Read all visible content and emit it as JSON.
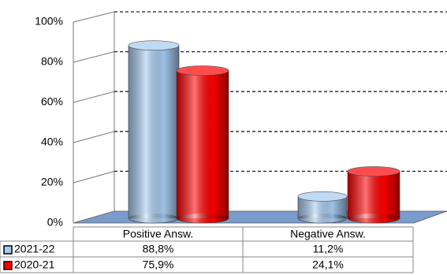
{
  "chart_data": {
    "type": "bar",
    "categories": [
      "Positive Answ.",
      "Negative Answ."
    ],
    "series": [
      {
        "name": "2021-22",
        "color": "#a6caf0",
        "values": [
          88.8,
          11.2
        ],
        "value_labels": [
          "88,8%",
          "11,2%"
        ]
      },
      {
        "name": "2020-21",
        "color": "#ff0000",
        "values": [
          75.9,
          24.1
        ],
        "value_labels": [
          "75,9%",
          "24,1%"
        ]
      }
    ],
    "ylim": [
      0,
      100
    ],
    "yticks": [
      {
        "value": 0,
        "label": "0%"
      },
      {
        "value": 20,
        "label": "20%"
      },
      {
        "value": 40,
        "label": "40%"
      },
      {
        "value": 60,
        "label": "60%"
      },
      {
        "value": 80,
        "label": "80%"
      },
      {
        "value": 100,
        "label": "100%"
      }
    ],
    "grid": true
  }
}
